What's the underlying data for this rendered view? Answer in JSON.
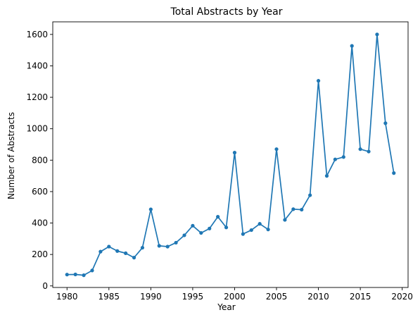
{
  "chart_data": {
    "type": "line",
    "title": "Total Abstracts by Year",
    "xlabel": "Year",
    "ylabel": "Number of Abstracts",
    "xlim": [
      1978.3,
      2020.7
    ],
    "ylim": [
      -10,
      1680
    ],
    "x_ticks": [
      1980,
      1985,
      1990,
      1995,
      2000,
      2005,
      2010,
      2015,
      2020
    ],
    "y_ticks": [
      0,
      200,
      400,
      600,
      800,
      1000,
      1200,
      1400,
      1600
    ],
    "grid": false,
    "legend": "none",
    "series": [
      {
        "color": "#1f77b4",
        "marker": "circle",
        "x": [
          1980,
          1981,
          1982,
          1983,
          1984,
          1985,
          1986,
          1987,
          1988,
          1989,
          1990,
          1991,
          1992,
          1993,
          1994,
          1995,
          1996,
          1997,
          1998,
          1999,
          2000,
          2001,
          2002,
          2003,
          2004,
          2005,
          2006,
          2007,
          2008,
          2009,
          2010,
          2011,
          2012,
          2013,
          2014,
          2015,
          2016,
          2017,
          2018,
          2019
        ],
        "y": [
          72,
          73,
          68,
          98,
          218,
          250,
          222,
          208,
          180,
          243,
          487,
          255,
          250,
          275,
          322,
          383,
          337,
          365,
          440,
          372,
          848,
          330,
          355,
          395,
          359,
          870,
          420,
          488,
          485,
          577,
          1305,
          700,
          805,
          820,
          1527,
          870,
          855,
          1600,
          1035,
          718
        ]
      }
    ]
  }
}
